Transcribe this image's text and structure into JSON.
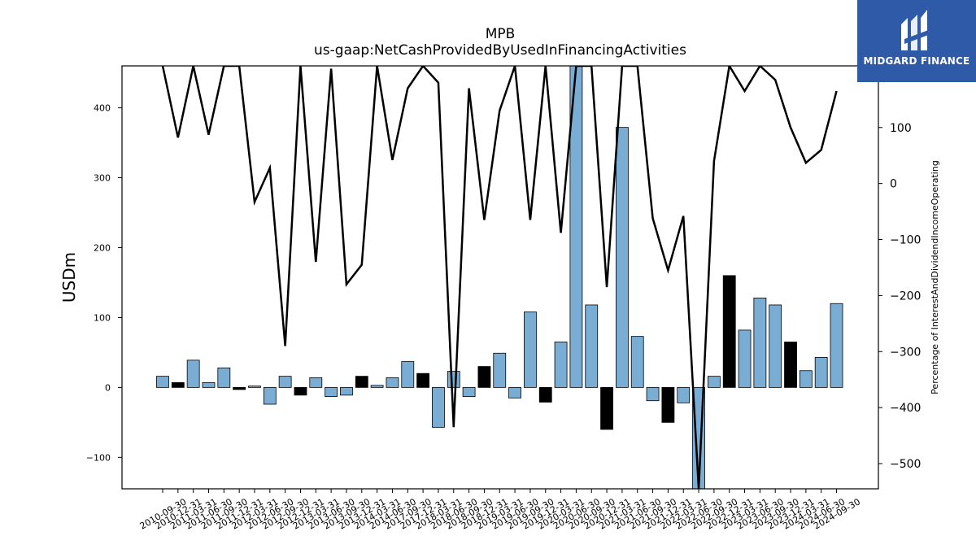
{
  "title": "MPB",
  "subtitle": "us-gaap:NetCashProvidedByUsedInFinancingActivities",
  "logo": {
    "text": "MIDGARD FINANCE",
    "color": "#2f5aa8",
    "icon": "midgard-m-logo-icon"
  },
  "colors": {
    "bar_positive": "#7aadd4",
    "bar_negative": "#000000",
    "line": "#000000"
  },
  "chart_data": {
    "type": "bar",
    "ylabel": "USDm",
    "y2label": "Percentage of InterestAndDividendIncomeOperating",
    "ylim": [
      -145,
      460
    ],
    "y2lim": [
      -545,
      210
    ],
    "yticks": [
      -100,
      0,
      100,
      200,
      300,
      400
    ],
    "y2ticks": [
      -500,
      -400,
      -300,
      -200,
      -100,
      0,
      100
    ],
    "categories": [
      "2010-09-30",
      "2010-12-31",
      "2011-03-31",
      "2011-06-30",
      "2011-09-30",
      "2011-12-31",
      "2012-03-31",
      "2012-06-30",
      "2012-09-30",
      "2012-12-31",
      "2013-03-31",
      "2013-06-30",
      "2013-09-30",
      "2013-12-31",
      "2014-03-31",
      "2014-06-30",
      "2017-09-30",
      "2017-12-31",
      "2018-03-31",
      "2018-06-30",
      "2018-09-30",
      "2018-12-31",
      "2019-03-31",
      "2019-06-30",
      "2019-09-30",
      "2019-12-31",
      "2020-03-31",
      "2020-06-30",
      "2020-09-30",
      "2020-12-31",
      "2021-03-31",
      "2021-06-30",
      "2021-09-30",
      "2021-12-31",
      "2022-03-31",
      "2022-06-30",
      "2022-09-30",
      "2022-12-31",
      "2023-03-31",
      "2023-06-30",
      "2023-09-30",
      "2023-12-31",
      "2024-03-31",
      "2024-06-30",
      "2024-09-30"
    ],
    "series": [
      {
        "type": "bar",
        "values": [
          16,
          7,
          39,
          7,
          28,
          -3,
          2,
          -24,
          16,
          -11,
          14,
          -13,
          -11,
          16,
          3,
          14,
          37,
          20,
          -57,
          23,
          -13,
          30,
          49,
          -15,
          108,
          -21,
          65,
          460,
          118,
          -60,
          372,
          73,
          -19,
          -50,
          -22,
          -145,
          16,
          160,
          82,
          128,
          118,
          65,
          24,
          43,
          120
        ],
        "quarter_over_quarter_color": [
          "pos",
          "neg",
          "pos",
          "pos",
          "pos",
          "neg",
          "pos",
          "pos",
          "pos",
          "neg",
          "pos",
          "pos",
          "pos",
          "neg",
          "pos",
          "pos",
          "pos",
          "neg",
          "pos",
          "pos",
          "pos",
          "neg",
          "pos",
          "pos",
          "pos",
          "neg",
          "pos",
          "pos",
          "pos",
          "neg",
          "pos",
          "pos",
          "pos",
          "neg",
          "pos",
          "pos",
          "pos",
          "neg",
          "pos",
          "pos",
          "pos",
          "neg",
          "pos",
          "pos",
          "pos"
        ]
      },
      {
        "type": "line",
        "axis": "right",
        "values": [
          210,
          82,
          210,
          87,
          210,
          210,
          -33,
          28,
          -290,
          210,
          -140,
          205,
          -180,
          -145,
          210,
          42,
          170,
          210,
          180,
          -435,
          170,
          -65,
          130,
          210,
          -65,
          210,
          -88,
          210,
          210,
          -185,
          210,
          210,
          -62,
          -155,
          -58,
          -545,
          40,
          210,
          165,
          210,
          185,
          100,
          37,
          60,
          165
        ]
      }
    ]
  }
}
